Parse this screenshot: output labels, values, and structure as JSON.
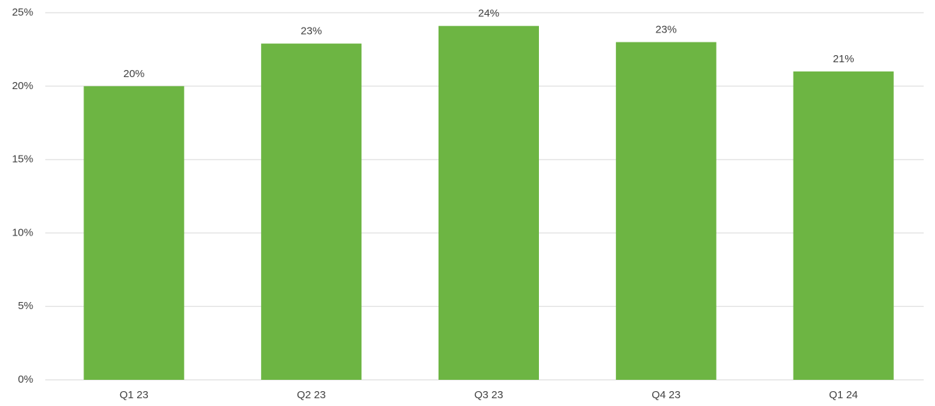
{
  "chart_data": {
    "type": "bar",
    "categories": [
      "Q1 23",
      "Q2 23",
      "Q3 23",
      "Q4 23",
      "Q1 24"
    ],
    "values": [
      20,
      22.9,
      24.1,
      23,
      21
    ],
    "value_labels": [
      "20%",
      "23%",
      "24%",
      "23%",
      "21%"
    ],
    "color": "#6db543",
    "ylim": [
      0,
      25
    ],
    "yticks": [
      {
        "value": 0,
        "label": "0%"
      },
      {
        "value": 5,
        "label": "5%"
      },
      {
        "value": 10,
        "label": "10%"
      },
      {
        "value": 15,
        "label": "15%"
      },
      {
        "value": 20,
        "label": "20%"
      },
      {
        "value": 25,
        "label": "25%"
      }
    ],
    "grid": true
  }
}
